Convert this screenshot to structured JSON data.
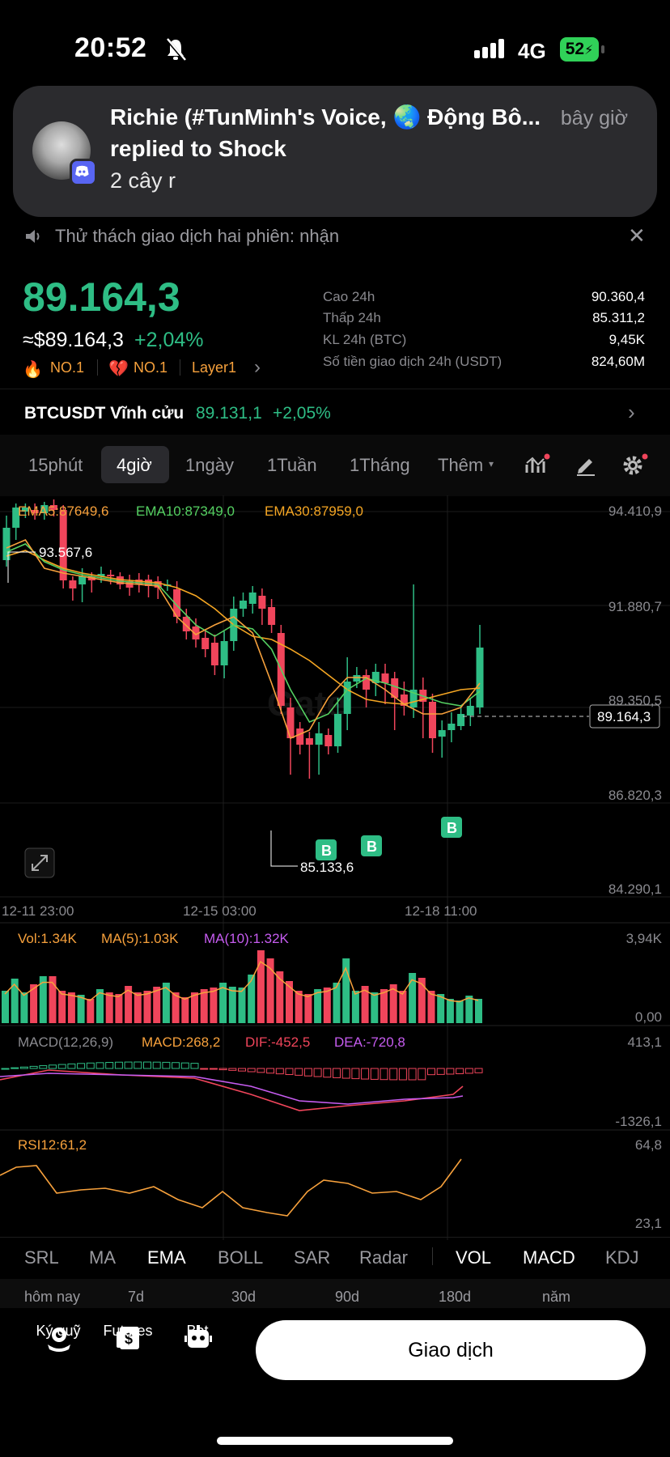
{
  "status_bar": {
    "time": "20:52",
    "network": "4G",
    "battery": "52"
  },
  "notification": {
    "title": "Richie (#TunMinh's Voice, 🌏 Động Bô...",
    "time": "bây giờ",
    "subtitle": "replied to Shock",
    "body": "2 cây r"
  },
  "announcement": {
    "text": "Thử thách giao dịch hai phiên: nhận"
  },
  "price": {
    "last": "89.164,3",
    "approx": "≈$89.164,3",
    "change": "+2,04%",
    "badges": [
      "NO.1",
      "NO.1",
      "Layer1"
    ],
    "stats": [
      {
        "label": "Cao 24h",
        "value": "90.360,4"
      },
      {
        "label": "Thấp 24h",
        "value": "85.311,2"
      },
      {
        "label": "KL 24h (BTC)",
        "value": "9,45K"
      },
      {
        "label": "Số tiền giao dịch 24h (USDT)",
        "value": "824,60M"
      }
    ]
  },
  "perpetual": {
    "label": "BTCUSDT Vĩnh cửu",
    "price": "89.131,1",
    "change": "+2,05%"
  },
  "timeframes": [
    "15phút",
    "4giờ",
    "1ngày",
    "1Tuần",
    "1Tháng",
    "Thêm"
  ],
  "active_timeframe": "4giờ",
  "chart": {
    "ema_labels": [
      "EMA5:87649,6",
      "EMA10:87349,0",
      "EMA30:87959,0"
    ],
    "y_ticks": [
      "94.410,9",
      "91.880,7",
      "89.350,5",
      "86.820,3",
      "84.290,1"
    ],
    "high_label": "93.567,6",
    "low_label": "85.133,6",
    "current_label": "89.164,3",
    "x_labels": [
      "12-11 23:00",
      "12-15 03:00",
      "12-18 11:00"
    ],
    "watermark": "Gate"
  },
  "volume": {
    "labels": [
      "Vol:1.34K",
      "MA(5):1.03K",
      "MA(10):1.32K"
    ],
    "ticks": [
      "3,94K",
      "0,00"
    ]
  },
  "macd": {
    "labels": [
      "MACD(12,26,9)",
      "MACD:268,2",
      "DIF:-452,5",
      "DEA:-720,8"
    ],
    "ticks": [
      "413,1",
      "-1326,1"
    ]
  },
  "rsi": {
    "label": "RSI12:61,2",
    "ticks": [
      "64,8",
      "23,1"
    ]
  },
  "indicators_main": [
    "SRL",
    "MA",
    "EMA",
    "BOLL",
    "SAR",
    "Radar"
  ],
  "indicators_sub": [
    "VOL",
    "MACD",
    "KDJ"
  ],
  "periods": [
    "hôm nay",
    "7d",
    "30d",
    "90d",
    "180d",
    "năm"
  ],
  "bottom_nav": [
    {
      "label": "Ký quỹ",
      "icon": "margin-icon"
    },
    {
      "label": "Futures",
      "icon": "futures-icon"
    },
    {
      "label": "Bot",
      "icon": "bot-icon"
    }
  ],
  "trade_button": "Giao dịch",
  "colors": {
    "up": "#2ebd85",
    "down": "#f0455b",
    "ema5": "#f7a13c",
    "ema10": "#55d162",
    "ema30": "#f5a623"
  }
}
